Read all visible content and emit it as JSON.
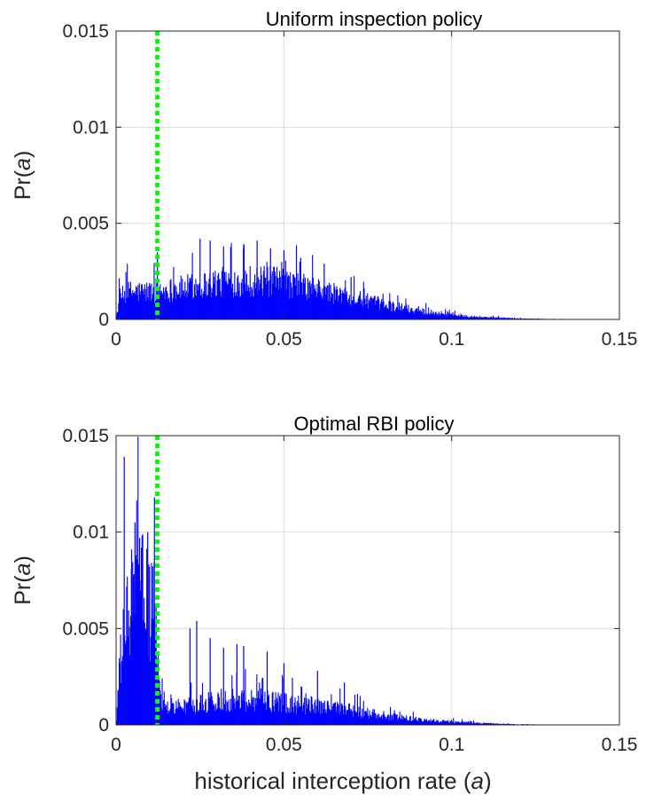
{
  "chart_data": [
    {
      "type": "histogram",
      "title": "Uniform inspection policy",
      "ylabel": {
        "prefix": "Pr(",
        "var": "a",
        "suffix": ")"
      },
      "xlabel": null,
      "xlim": [
        0,
        0.15
      ],
      "ylim": [
        0,
        0.015
      ],
      "xticks": [
        0,
        0.05,
        0.1,
        0.15
      ],
      "xtick_labels": [
        "0",
        "0.05",
        "0.1",
        "0.15"
      ],
      "yticks": [
        0,
        0.005,
        0.01,
        0.015
      ],
      "ytick_labels": [
        "0",
        "0.005",
        "0.01",
        "0.015"
      ],
      "grid": true,
      "bar_color": "#0000ff",
      "reference_line": {
        "x": 0.0123,
        "color": "#00ff00",
        "style": "dotted"
      },
      "bin_width": 0.0002,
      "profile": {
        "x": [
          0,
          0.001,
          0.004,
          0.01,
          0.02,
          0.03,
          0.04,
          0.05,
          0.06,
          0.07,
          0.08,
          0.09,
          0.1,
          0.11,
          0.12,
          0.13,
          0.14,
          0.15
        ],
        "y": [
          0,
          0.0012,
          0.0015,
          0.0015,
          0.0017,
          0.002,
          0.0021,
          0.002,
          0.0016,
          0.0012,
          0.0008,
          0.00048,
          0.00026,
          0.00012,
          5e-05,
          2e-05,
          5e-06,
          0
        ]
      },
      "noise": 0.9,
      "spikes": [
        {
          "x": 0.0123,
          "y": 0.0035
        },
        {
          "x": 0.025,
          "y": 0.0042
        },
        {
          "x": 0.028,
          "y": 0.0041
        },
        {
          "x": 0.032,
          "y": 0.0038
        },
        {
          "x": 0.038,
          "y": 0.0039
        },
        {
          "x": 0.042,
          "y": 0.0041
        },
        {
          "x": 0.046,
          "y": 0.0037
        },
        {
          "x": 0.05,
          "y": 0.0036
        },
        {
          "x": 0.055,
          "y": 0.0032
        },
        {
          "x": 0.062,
          "y": 0.0029
        },
        {
          "x": 0.07,
          "y": 0.0022
        }
      ]
    },
    {
      "type": "histogram",
      "title": "Optimal RBI policy",
      "ylabel": {
        "prefix": "Pr(",
        "var": "a",
        "suffix": ")"
      },
      "xlabel": {
        "prefix": "historical interception rate (",
        "var": "a",
        "suffix": ")"
      },
      "xlim": [
        0,
        0.15
      ],
      "ylim": [
        0,
        0.015
      ],
      "xticks": [
        0,
        0.05,
        0.1,
        0.15
      ],
      "xtick_labels": [
        "0",
        "0.05",
        "0.1",
        "0.15"
      ],
      "yticks": [
        0,
        0.005,
        0.01,
        0.015
      ],
      "ytick_labels": [
        "0",
        "0.005",
        "0.01",
        "0.015"
      ],
      "grid": true,
      "bar_color": "#0000ff",
      "reference_line": {
        "x": 0.0123,
        "color": "#00ff00",
        "style": "dotted"
      },
      "bin_width": 0.0002,
      "profile": {
        "x": [
          0,
          0.001,
          0.003,
          0.005,
          0.008,
          0.0115,
          0.0125,
          0.015,
          0.02,
          0.03,
          0.04,
          0.05,
          0.06,
          0.07,
          0.08,
          0.09,
          0.1,
          0.11,
          0.12,
          0.13,
          0.14,
          0.15
        ],
        "y": [
          0,
          0.003,
          0.0055,
          0.0065,
          0.0072,
          0.006,
          0.002,
          0.001,
          0.001,
          0.0013,
          0.0014,
          0.0012,
          0.001,
          0.0008,
          0.0005,
          0.0003,
          0.00017,
          8e-05,
          3e-05,
          1e-05,
          4e-06,
          0
        ]
      },
      "noise": 1.0,
      "spikes": [
        {
          "x": 0.0024,
          "y": 0.0139
        },
        {
          "x": 0.0046,
          "y": 0.0091
        },
        {
          "x": 0.0056,
          "y": 0.0105
        },
        {
          "x": 0.007,
          "y": 0.0097
        },
        {
          "x": 0.0094,
          "y": 0.01
        },
        {
          "x": 0.0114,
          "y": 0.0118
        },
        {
          "x": 0.024,
          "y": 0.0054
        },
        {
          "x": 0.022,
          "y": 0.005
        },
        {
          "x": 0.028,
          "y": 0.0045
        },
        {
          "x": 0.032,
          "y": 0.004
        },
        {
          "x": 0.036,
          "y": 0.0042
        },
        {
          "x": 0.038,
          "y": 0.0041
        },
        {
          "x": 0.045,
          "y": 0.0038
        },
        {
          "x": 0.05,
          "y": 0.0032
        },
        {
          "x": 0.06,
          "y": 0.0028
        },
        {
          "x": 0.068,
          "y": 0.0022
        }
      ]
    }
  ]
}
